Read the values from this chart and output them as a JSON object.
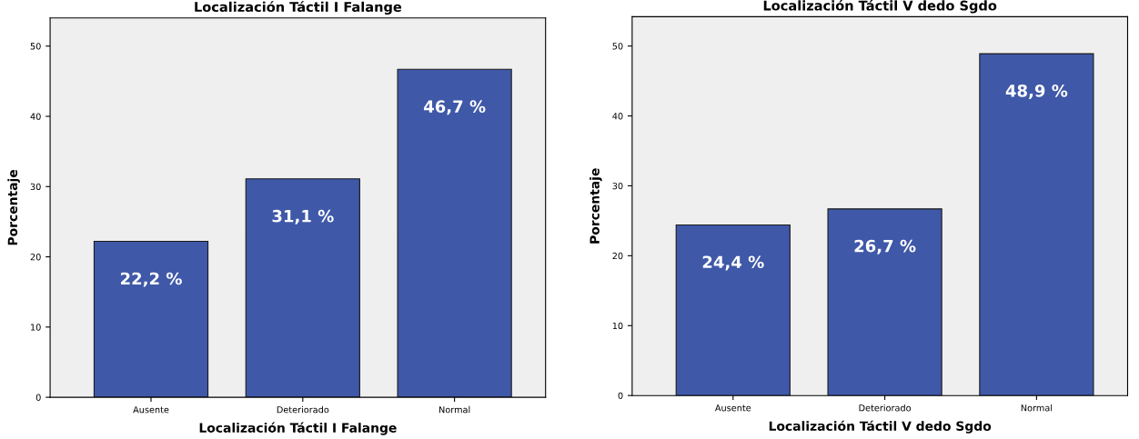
{
  "chart_data": [
    {
      "type": "bar",
      "title": "Localización Táctil I Falange",
      "xlabel": "Localización Táctil I Falange",
      "ylabel": "Porcentaje",
      "categories": [
        "Ausente",
        "Deteriorado",
        "Normal"
      ],
      "values": [
        22.2,
        31.1,
        46.7
      ],
      "value_labels": [
        "22,2 %",
        "31,1 %",
        "46,7 %"
      ],
      "color": "#3f58a8",
      "ylim": [
        0,
        54
      ],
      "yticks": [
        0,
        10,
        20,
        30,
        40,
        50
      ],
      "grid": false,
      "legend": false
    },
    {
      "type": "bar",
      "title": "Localización Táctil V dedo Sgdo",
      "xlabel": "Localización Táctil V dedo Sgdo",
      "ylabel": "Porcentaje",
      "categories": [
        "Ausente",
        "Deteriorado",
        "Normal"
      ],
      "values": [
        24.4,
        26.7,
        48.9
      ],
      "value_labels": [
        "24,4 %",
        "26,7 %",
        "48,9 %"
      ],
      "color": "#3f58a8",
      "ylim": [
        0,
        54.2
      ],
      "yticks": [
        0,
        10,
        20,
        30,
        40,
        50
      ],
      "grid": false,
      "legend": false
    }
  ]
}
